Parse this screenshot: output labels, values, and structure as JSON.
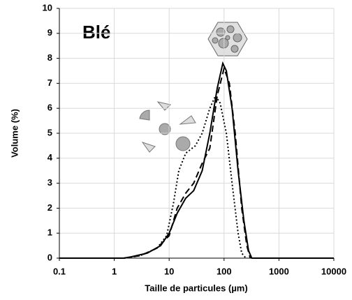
{
  "chart_data": {
    "type": "line",
    "annotation": "Blé",
    "annotation_color": "#f5b800",
    "xlabel": "Taille de particules (µm)",
    "ylabel": "Volume (%)",
    "xscale": "log",
    "grid": true,
    "xlim": [
      0.1,
      10000
    ],
    "xticks": [
      0.1,
      1,
      10,
      100,
      1000,
      10000
    ],
    "ylim": [
      0,
      10
    ],
    "yticks": [
      0,
      1,
      2,
      3,
      4,
      5,
      6,
      7,
      8,
      9,
      10
    ],
    "series": [
      {
        "color": "#000000",
        "dash": "solid",
        "x": [
          0.1,
          1.5,
          2,
          4,
          7,
          10,
          14,
          20,
          28,
          40,
          55,
          75,
          95,
          110,
          140,
          180,
          230,
          280,
          320,
          10000
        ],
        "values": [
          0,
          0,
          0.05,
          0.2,
          0.5,
          1.0,
          1.8,
          2.4,
          2.7,
          3.5,
          5.0,
          6.8,
          7.8,
          7.5,
          6.0,
          3.5,
          1.5,
          0.3,
          0,
          0
        ]
      },
      {
        "color": "#000000",
        "dash": "dashed",
        "x": [
          1.5,
          3,
          6,
          10,
          14,
          20,
          28,
          40,
          55,
          75,
          100,
          125,
          160,
          210,
          260,
          300
        ],
        "values": [
          0,
          0.1,
          0.4,
          0.9,
          2.0,
          2.6,
          3.0,
          3.8,
          4.4,
          6.5,
          7.6,
          7.0,
          5.0,
          2.0,
          0.5,
          0
        ]
      },
      {
        "color": "#000000",
        "dash": "dotted",
        "x": [
          1.5,
          3,
          6,
          9,
          12,
          15,
          20,
          30,
          40,
          55,
          70,
          85,
          110,
          140,
          180,
          210,
          250
        ],
        "values": [
          0,
          0.1,
          0.4,
          0.9,
          2.2,
          3.5,
          4.2,
          4.5,
          5.0,
          6.0,
          6.5,
          6.2,
          5.0,
          3.0,
          1.0,
          0.2,
          0
        ]
      }
    ]
  }
}
